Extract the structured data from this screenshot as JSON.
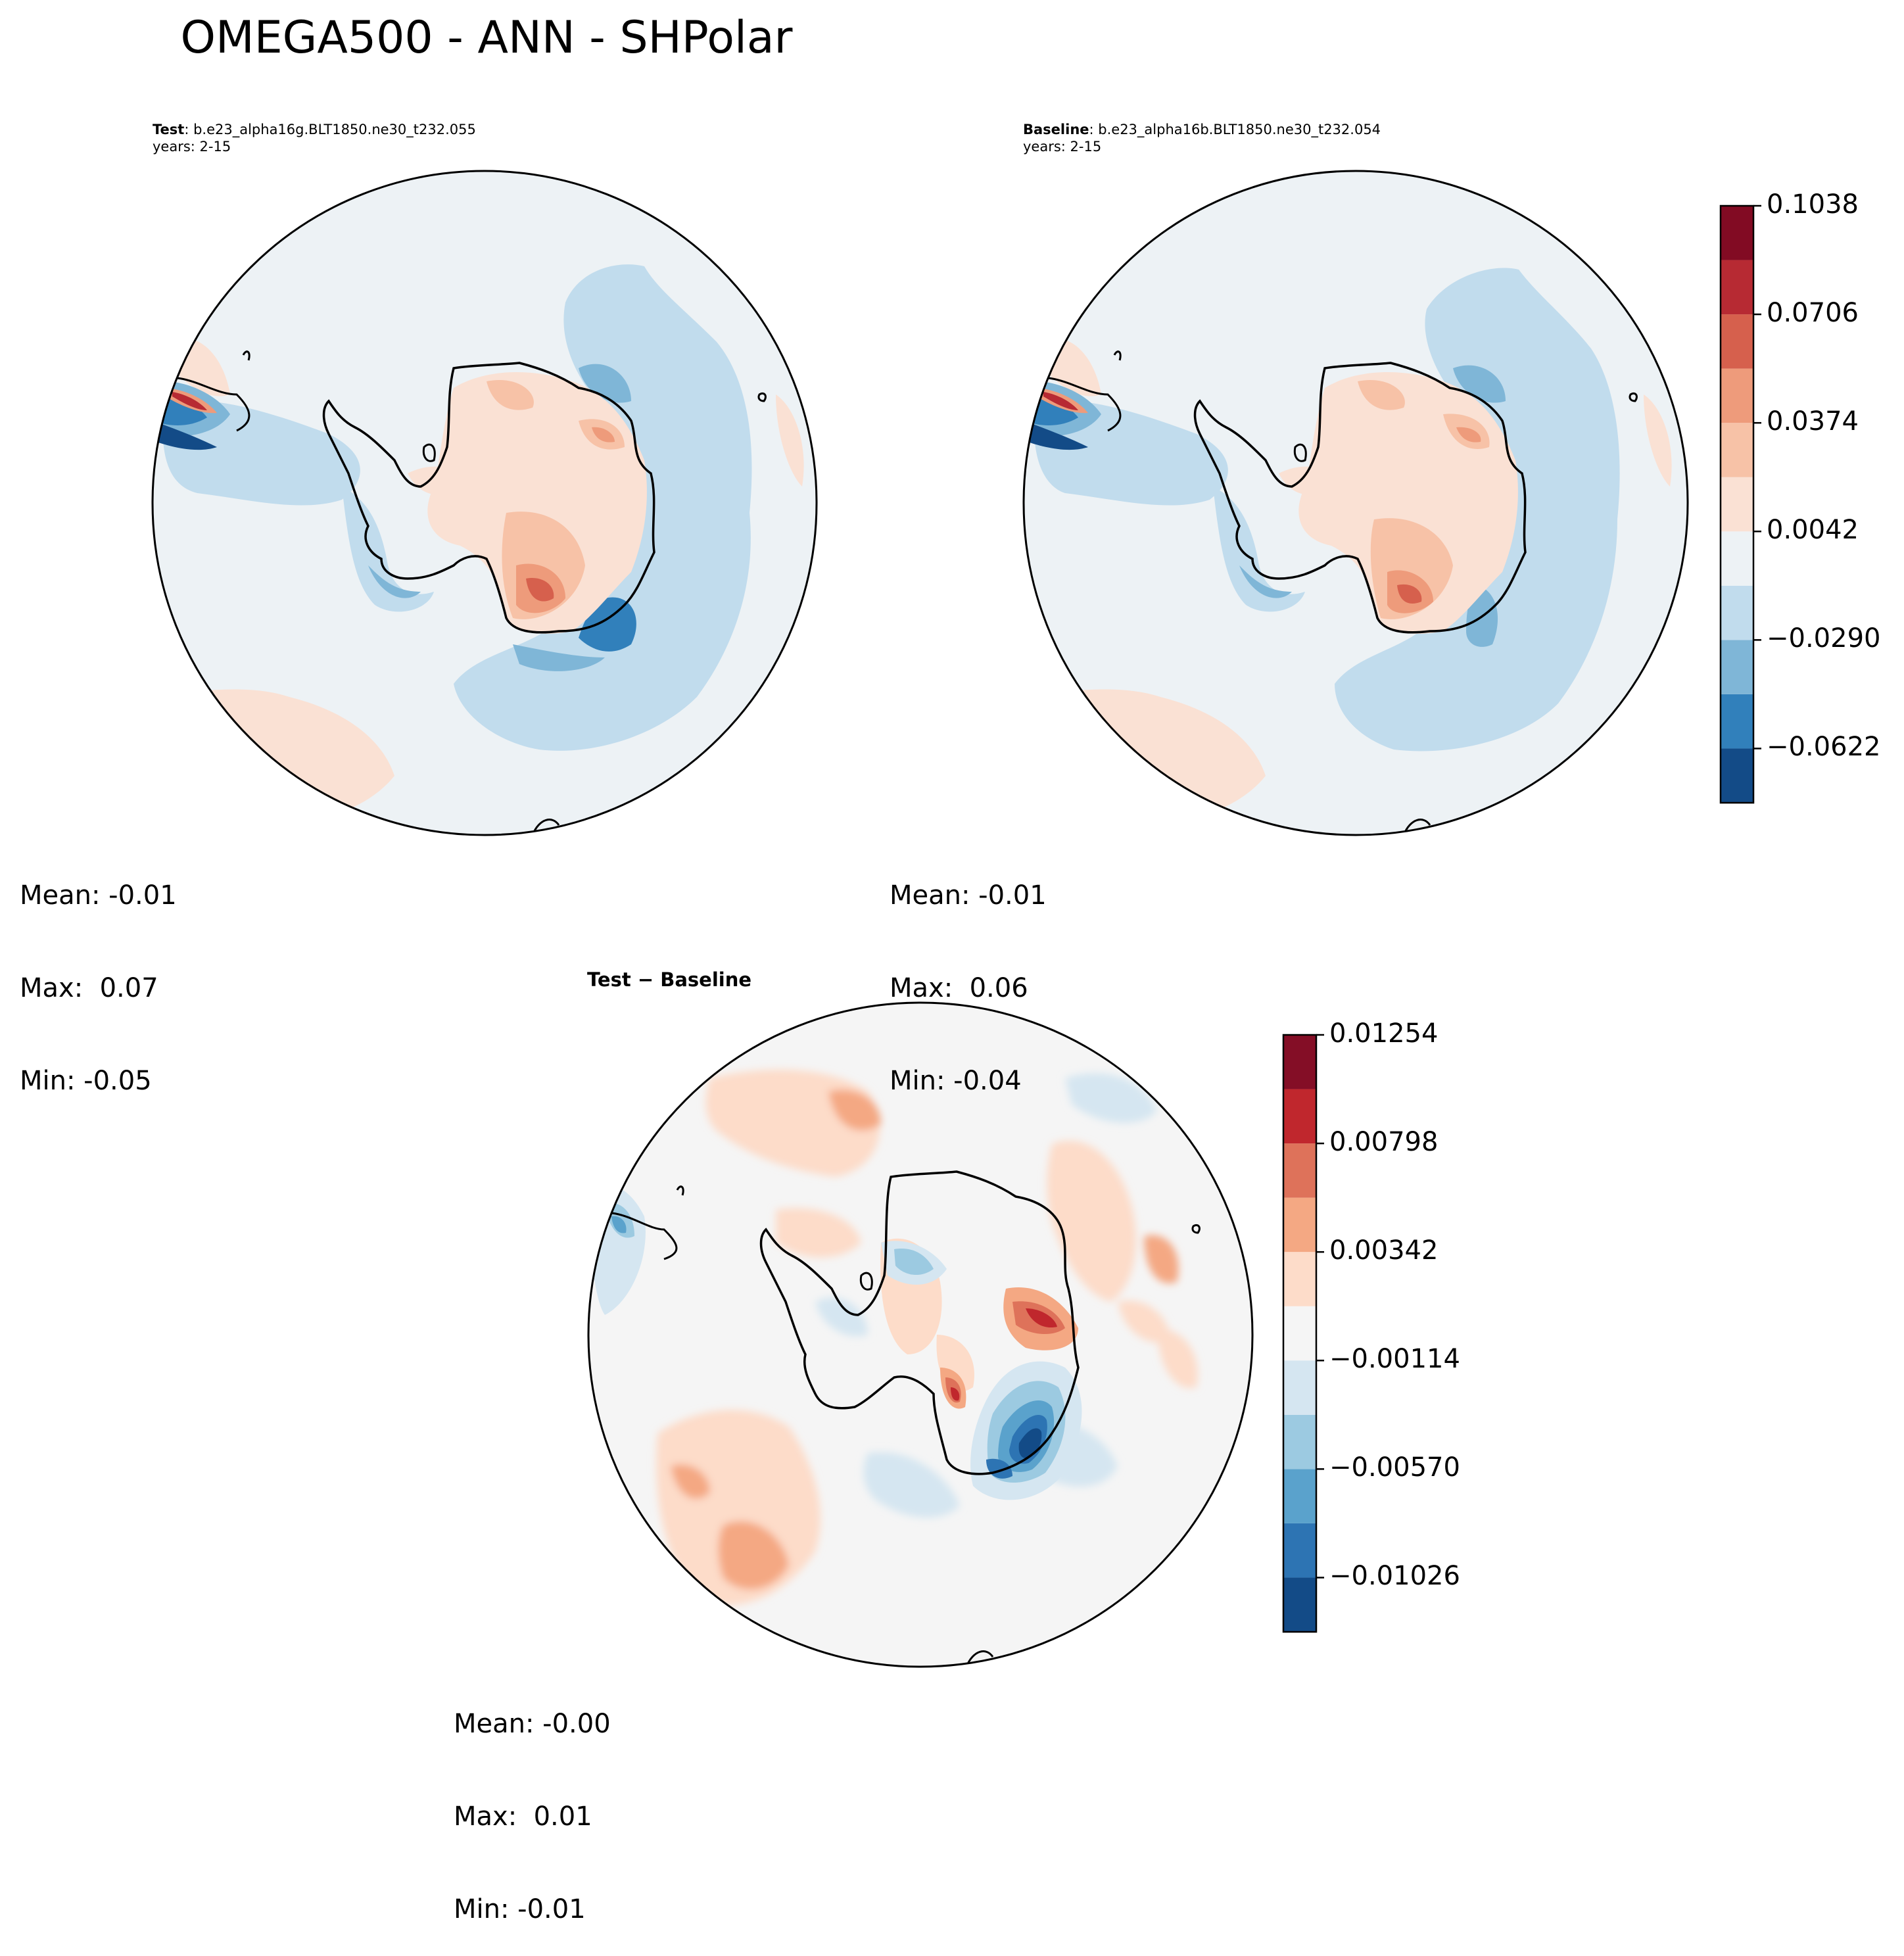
{
  "figure": {
    "title": "OMEGA500 - ANN - SHPolar"
  },
  "panels": {
    "test": {
      "label_bold": "Test",
      "label_rest": ": b.e23_alpha16g.BLT1850.ne30_t232.055",
      "years": "years: 2-15",
      "stats": {
        "mean": "Mean: -0.01",
        "max": "Max:  0.07",
        "min": "Min: -0.05"
      }
    },
    "baseline": {
      "label_bold": "Baseline",
      "label_rest": ": b.e23_alpha16b.BLT1850.ne30_t232.054",
      "years": "years: 2-15",
      "stats": {
        "mean": "Mean: -0.01",
        "max": "Max:  0.06",
        "min": "Min: -0.04"
      }
    },
    "difference": {
      "title": "Test − Baseline",
      "stats": {
        "mean": "Mean: -0.00",
        "max": "Max:  0.01",
        "min": "Min: -0.01"
      }
    }
  },
  "chart_data": [
    {
      "type": "filled-contour-map",
      "projection": "south-polar-stereographic",
      "panel": "Test",
      "case": "b.e23_alpha16g.BLT1850.ne30_t232.055",
      "years": "2-15",
      "mean": -0.01,
      "max": 0.07,
      "min": -0.05,
      "colorbar": {
        "levels": [
          -0.0788,
          -0.0622,
          -0.0456,
          -0.029,
          -0.0124,
          0.0042,
          0.0208,
          0.0374,
          0.054,
          0.0706,
          0.0872,
          0.1038
        ],
        "tick_labels": [
          "0.1038",
          "0.0706",
          "0.0374",
          "0.0042",
          "−0.0290",
          "−0.0622"
        ],
        "colors_low_to_high": [
          "#134b87",
          "#3180bb",
          "#7fb6d7",
          "#c1dced",
          "#edf2f5",
          "#fae1d4",
          "#f7c2a7",
          "#ee9b7b",
          "#d6604d",
          "#b72a33",
          "#820b23"
        ]
      }
    },
    {
      "type": "filled-contour-map",
      "projection": "south-polar-stereographic",
      "panel": "Baseline",
      "case": "b.e23_alpha16b.BLT1850.ne30_t232.054",
      "years": "2-15",
      "mean": -0.01,
      "max": 0.06,
      "min": -0.04,
      "colorbar": "shared with Test"
    },
    {
      "type": "filled-contour-map",
      "projection": "south-polar-stereographic",
      "panel": "Test − Baseline",
      "mean": -0.0,
      "max": 0.01,
      "min": -0.01,
      "colorbar": {
        "levels": [
          -0.01254,
          -0.01026,
          -0.00798,
          -0.0057,
          -0.00342,
          -0.00114,
          0.00114,
          0.00342,
          0.0057,
          0.00798,
          0.01026,
          0.01254
        ],
        "tick_labels": [
          "0.01254",
          "0.00798",
          "0.00342",
          "−0.00114",
          "−0.00570",
          "−0.01026"
        ],
        "colors_low_to_high": [
          "#134b87",
          "#2d74b3",
          "#5aa2cc",
          "#9ccae1",
          "#d5e6f1",
          "#f5f5f5",
          "#fddcc9",
          "#f4a883",
          "#de725a",
          "#c0272d",
          "#840e26"
        ]
      }
    }
  ]
}
